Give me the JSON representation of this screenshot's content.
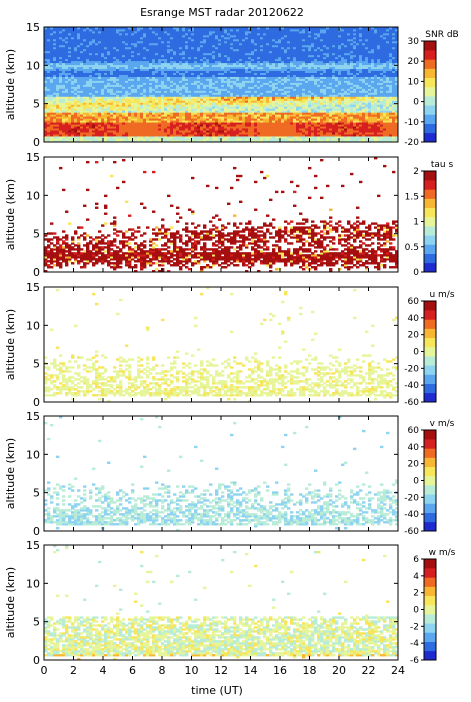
{
  "title": "Esrange MST radar 20120622",
  "colors": {
    "palette": [
      "#1f2bd1",
      "#2f6be0",
      "#5aa7f0",
      "#8ed3f0",
      "#b8ecd7",
      "#e6f59a",
      "#f7e55a",
      "#f7b733",
      "#ef6a22",
      "#d62020",
      "#a60f0f"
    ],
    "background": "#ffffff"
  },
  "chart_data": [
    {
      "type": "heatmap",
      "name": "snr",
      "ylabel": "altitude (km)",
      "ylim": [
        0,
        15
      ],
      "yticks": [
        0,
        5,
        10,
        15
      ],
      "xlim": [
        0,
        24
      ],
      "cbar_label": "SNR dB",
      "cbar_range": [
        -20,
        30
      ],
      "cbar_ticks": [
        30,
        20,
        10,
        0,
        -10,
        -20
      ]
    },
    {
      "type": "heatmap",
      "name": "tau",
      "ylabel": "altitude (km)",
      "ylim": [
        0,
        15
      ],
      "yticks": [
        0,
        5,
        10,
        15
      ],
      "xlim": [
        0,
        24
      ],
      "cbar_label": "tau s",
      "cbar_range": [
        0,
        2
      ],
      "cbar_ticks": [
        2,
        1.5,
        1,
        0.5,
        0
      ]
    },
    {
      "type": "heatmap",
      "name": "u",
      "ylabel": "altitude (km)",
      "ylim": [
        0,
        15
      ],
      "yticks": [
        0,
        5,
        10,
        15
      ],
      "xlim": [
        0,
        24
      ],
      "cbar_label": "u m/s",
      "cbar_range": [
        -60,
        60
      ],
      "cbar_ticks": [
        60,
        40,
        20,
        0,
        -20,
        -40,
        -60
      ]
    },
    {
      "type": "heatmap",
      "name": "v",
      "ylabel": "altitude (km)",
      "ylim": [
        0,
        15
      ],
      "yticks": [
        0,
        5,
        10,
        15
      ],
      "xlim": [
        0,
        24
      ],
      "cbar_label": "v m/s",
      "cbar_range": [
        -60,
        60
      ],
      "cbar_ticks": [
        60,
        40,
        20,
        0,
        -20,
        -40,
        -60
      ]
    },
    {
      "type": "heatmap",
      "name": "w",
      "ylabel": "altitude (km)",
      "ylim": [
        0,
        15
      ],
      "yticks": [
        0,
        5,
        10,
        15
      ],
      "xlim": [
        0,
        24
      ],
      "xlabel": "time (UT)",
      "xticks": [
        0,
        2,
        4,
        6,
        8,
        10,
        12,
        14,
        16,
        18,
        20,
        22,
        24
      ],
      "cbar_label": "w m/s",
      "cbar_range": [
        -6,
        6
      ],
      "cbar_ticks": [
        6,
        4,
        2,
        0,
        -2,
        -4,
        -6
      ]
    }
  ]
}
